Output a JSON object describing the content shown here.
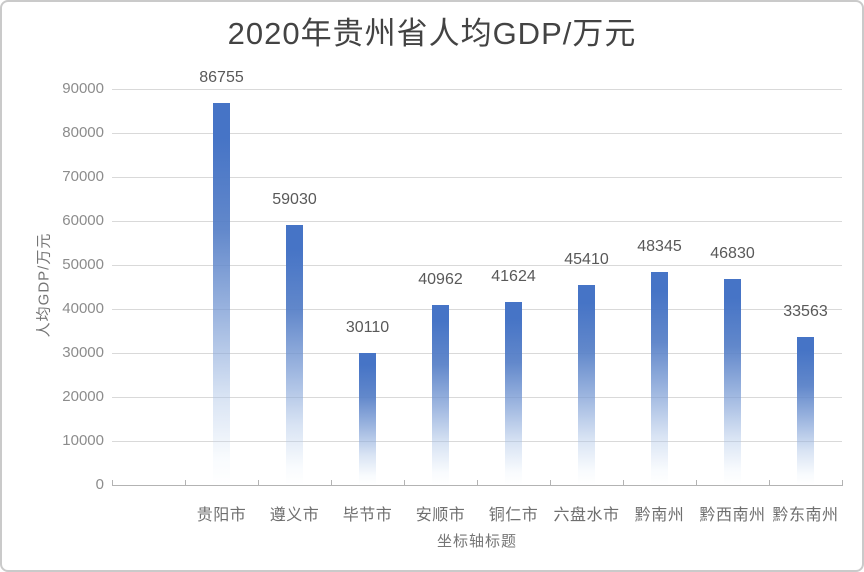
{
  "page": {
    "background": "#ffffff",
    "border_color": "#cacaca"
  },
  "chart_data": {
    "type": "bar",
    "title": "2020年贵州省人均GDP/万元",
    "xlabel": "坐标轴标题",
    "ylabel": "人均GDP/万元",
    "categories": [
      "贵阳市",
      "遵义市",
      "毕节市",
      "安顺市",
      "铜仁市",
      "六盘水市",
      "黔南州",
      "黔西南州",
      "黔东南州"
    ],
    "values": [
      86755,
      59030,
      30110,
      40962,
      41624,
      45410,
      48345,
      46830,
      33563
    ],
    "data_labels_shown": true,
    "ylim": [
      0,
      90000
    ],
    "ytick_step": 10000,
    "ytick_labels": [
      "0",
      "10000",
      "20000",
      "30000",
      "40000",
      "50000",
      "60000",
      "70000",
      "80000",
      "90000"
    ],
    "grid": true,
    "legend": "none",
    "leading_empty_slots": 1,
    "colors": {
      "bar_top": "#4674c6",
      "gridline": "#d9d9d9",
      "axis_line": "#b3b3b3",
      "title_text": "#434343",
      "data_label_text": "#595959",
      "tick_label_text": "#8c8c8c",
      "category_label_text": "#6f6f6f",
      "axis_title_text": "#757575",
      "border": "#cacaca"
    }
  }
}
